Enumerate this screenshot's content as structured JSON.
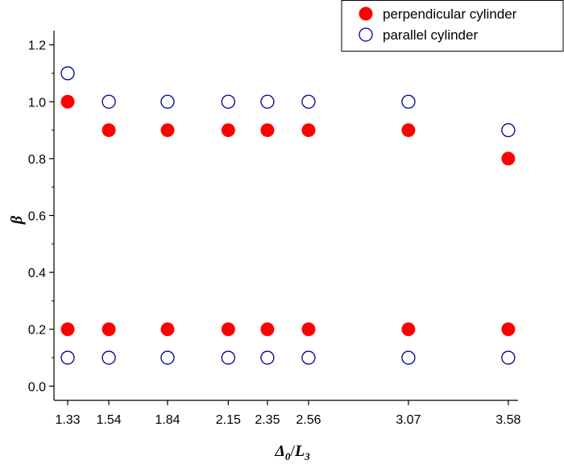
{
  "chart_data": {
    "type": "scatter",
    "title": "",
    "x_tick_labels": [
      "1.33",
      "1.54",
      "1.84",
      "2.15",
      "2.35",
      "2.56",
      "3.07",
      "3.58"
    ],
    "y_tick_labels": [
      "0.0",
      "0.2",
      "0.4",
      "0.6",
      "0.8",
      "1.0",
      "1.2"
    ],
    "xlim": [
      1.26,
      3.63
    ],
    "ylim": [
      -0.05,
      1.25
    ],
    "xlabel": {
      "main": "Δ",
      "sub1": "0",
      "slash": "/",
      "main2": "L",
      "sub2": "3"
    },
    "ylabel": "β",
    "legend_position": "top-right",
    "grid": false,
    "series": [
      {
        "name": "perpendicular cylinder",
        "marker": "filled-circle",
        "color": "#ff0000",
        "points": [
          [
            1.33,
            1.0
          ],
          [
            1.33,
            0.2
          ],
          [
            1.54,
            0.9
          ],
          [
            1.54,
            0.2
          ],
          [
            1.84,
            0.9
          ],
          [
            1.84,
            0.2
          ],
          [
            2.15,
            0.9
          ],
          [
            2.15,
            0.2
          ],
          [
            2.35,
            0.9
          ],
          [
            2.35,
            0.2
          ],
          [
            2.56,
            0.9
          ],
          [
            2.56,
            0.2
          ],
          [
            3.07,
            0.9
          ],
          [
            3.07,
            0.2
          ],
          [
            3.58,
            0.8
          ],
          [
            3.58,
            0.2
          ]
        ]
      },
      {
        "name": "parallel cylinder",
        "marker": "open-circle",
        "color": "#00008b",
        "points": [
          [
            1.33,
            1.1
          ],
          [
            1.33,
            0.1
          ],
          [
            1.54,
            1.0
          ],
          [
            1.54,
            0.1
          ],
          [
            1.84,
            1.0
          ],
          [
            1.84,
            0.1
          ],
          [
            2.15,
            1.0
          ],
          [
            2.15,
            0.1
          ],
          [
            2.35,
            1.0
          ],
          [
            2.35,
            0.1
          ],
          [
            2.56,
            1.0
          ],
          [
            2.56,
            0.1
          ],
          [
            3.07,
            1.0
          ],
          [
            3.07,
            0.1
          ],
          [
            3.58,
            0.9
          ],
          [
            3.58,
            0.1
          ]
        ]
      }
    ]
  }
}
